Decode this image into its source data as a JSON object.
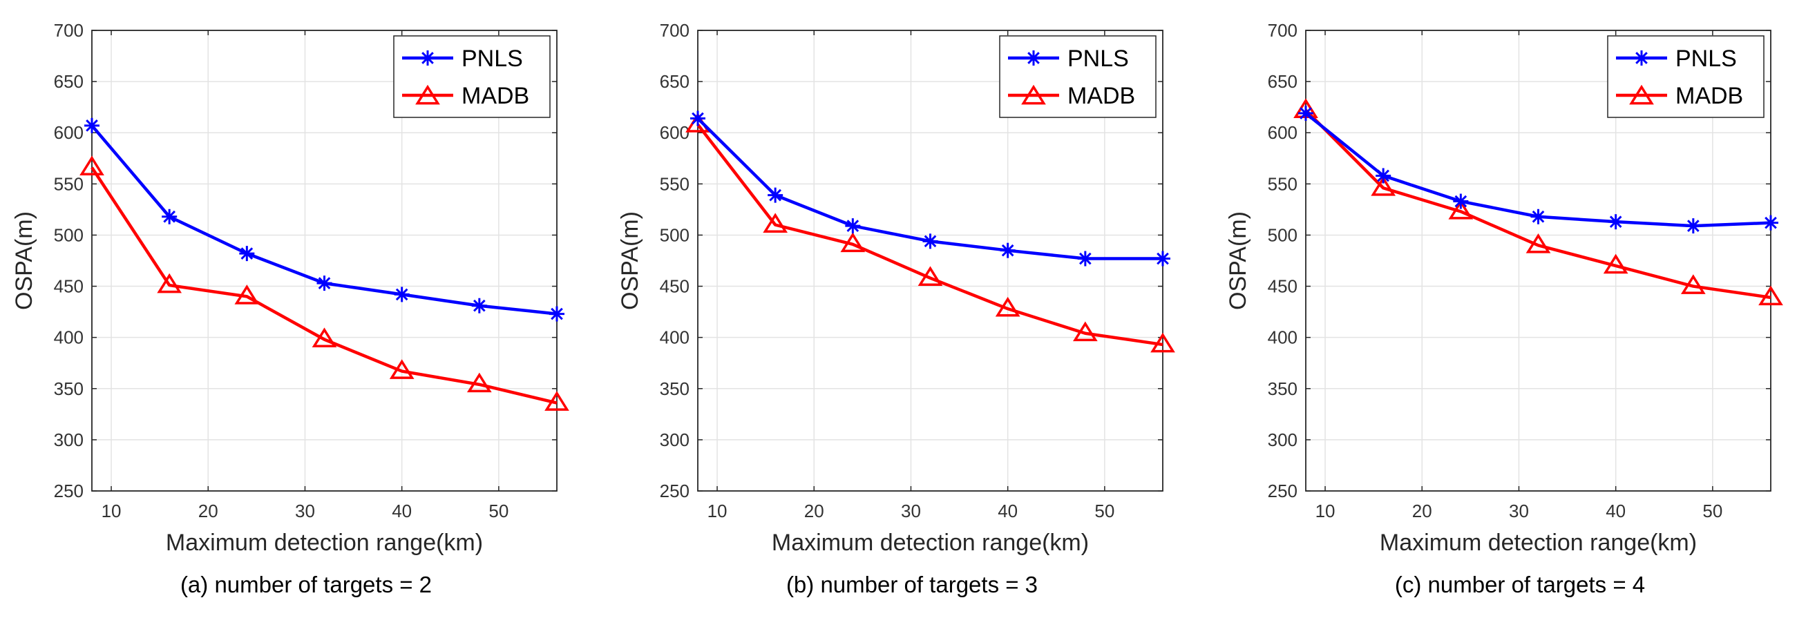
{
  "chart_data": [
    {
      "type": "line",
      "caption": "(a) number of targets = 2",
      "xlabel": "Maximum detection range(km)",
      "ylabel": "OSPA(m)",
      "xlim": [
        8,
        56
      ],
      "ylim": [
        250,
        700
      ],
      "xticks": [
        10,
        20,
        30,
        40,
        50
      ],
      "yticks": [
        250,
        300,
        350,
        400,
        450,
        500,
        550,
        600,
        650,
        700
      ],
      "grid": true,
      "legend_position": "top-right",
      "x": [
        8,
        16,
        24,
        32,
        40,
        48,
        56
      ],
      "series": [
        {
          "name": "PNLS",
          "color": "#0000ff",
          "marker": "asterisk",
          "values": [
            607,
            518,
            482,
            453,
            442,
            431,
            423
          ]
        },
        {
          "name": "MADB",
          "color": "#ff0000",
          "marker": "triangle",
          "values": [
            566,
            451,
            440,
            398,
            367,
            354,
            336
          ]
        }
      ]
    },
    {
      "type": "line",
      "caption": "(b) number of targets = 3",
      "xlabel": "Maximum detection range(km)",
      "ylabel": "OSPA(m)",
      "xlim": [
        8,
        56
      ],
      "ylim": [
        250,
        700
      ],
      "xticks": [
        10,
        20,
        30,
        40,
        50
      ],
      "yticks": [
        250,
        300,
        350,
        400,
        450,
        500,
        550,
        600,
        650,
        700
      ],
      "grid": true,
      "legend_position": "top-right",
      "x": [
        8,
        16,
        24,
        32,
        40,
        48,
        56
      ],
      "series": [
        {
          "name": "PNLS",
          "color": "#0000ff",
          "marker": "asterisk",
          "values": [
            614,
            539,
            509,
            494,
            485,
            477,
            477
          ]
        },
        {
          "name": "MADB",
          "color": "#ff0000",
          "marker": "triangle",
          "values": [
            608,
            510,
            491,
            458,
            428,
            404,
            393
          ]
        }
      ]
    },
    {
      "type": "line",
      "caption": "(c) number of targets = 4",
      "xlabel": "Maximum detection range(km)",
      "ylabel": "OSPA(m)",
      "xlim": [
        8,
        56
      ],
      "ylim": [
        250,
        700
      ],
      "xticks": [
        10,
        20,
        30,
        40,
        50
      ],
      "yticks": [
        250,
        300,
        350,
        400,
        450,
        500,
        550,
        600,
        650,
        700
      ],
      "grid": true,
      "legend_position": "top-right",
      "x": [
        8,
        16,
        24,
        32,
        40,
        48,
        56
      ],
      "series": [
        {
          "name": "PNLS",
          "color": "#0000ff",
          "marker": "asterisk",
          "values": [
            619,
            558,
            533,
            518,
            513,
            509,
            512
          ]
        },
        {
          "name": "MADB",
          "color": "#ff0000",
          "marker": "triangle",
          "values": [
            622,
            546,
            523,
            490,
            470,
            450,
            439
          ]
        }
      ]
    }
  ]
}
